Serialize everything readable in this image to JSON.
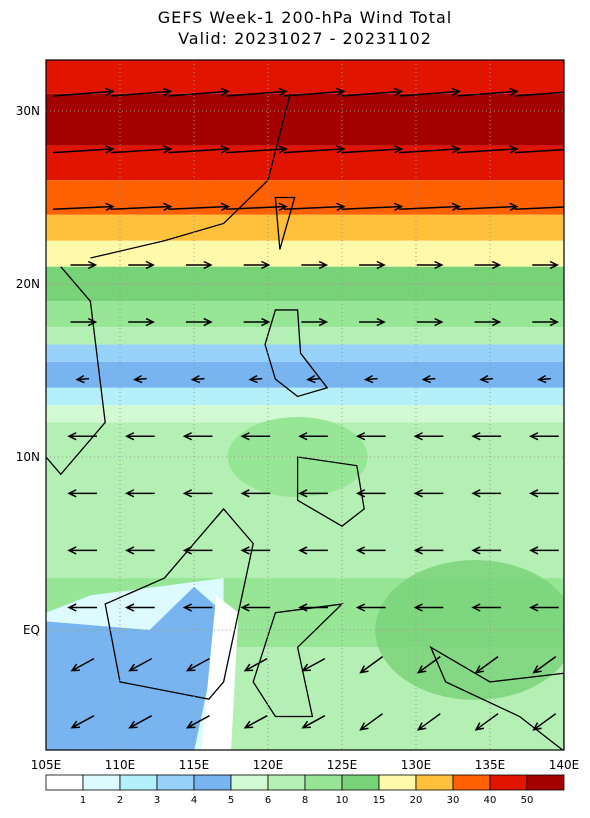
{
  "title": "GEFS Week-1 200-hPa Wind Total",
  "subtitle": "Valid: 20231027 - 20231102",
  "lat_labels": [
    "30N",
    "20N",
    "10N",
    "EQ"
  ],
  "lon_labels": [
    "105E",
    "110E",
    "115E",
    "120E",
    "125E",
    "130E",
    "135E",
    "140E"
  ],
  "colorbar": {
    "labels": [
      "1",
      "2",
      "3",
      "4",
      "5",
      "6",
      "8",
      "10",
      "15",
      "20",
      "30",
      "40",
      "50"
    ],
    "colors": [
      "#ffffff",
      "#dcfaff",
      "#b4f0fa",
      "#96d2fa",
      "#78b4f0",
      "#d2fad2",
      "#b4f0b4",
      "#96e696",
      "#78d278",
      "#fffaaa",
      "#ffc03c",
      "#ff6000",
      "#e11400",
      "#a50000"
    ]
  }
}
